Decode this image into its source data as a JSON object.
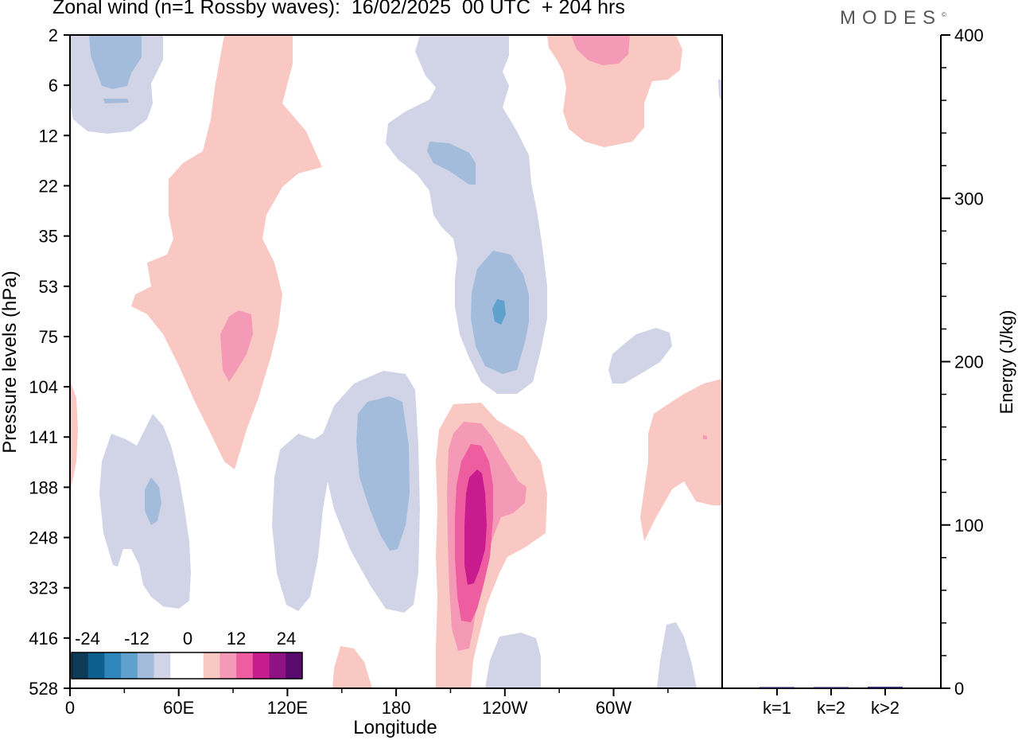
{
  "header": {
    "title": "Zonal wind (n=1 Rossby waves):  16/02/2025  00 UTC  + 204 hrs",
    "logo": "MODES",
    "logo_mark": "©"
  },
  "chart_data": [
    {
      "type": "contour",
      "title": "Zonal wind (n=1 Rossby waves)",
      "xlabel": "Longitude",
      "ylabel": "Pressure levels (hPa)",
      "x_ticks": [
        "0",
        "60E",
        "120E",
        "180",
        "120W",
        "60W"
      ],
      "y_ticks": [
        "2",
        "6",
        "12",
        "22",
        "35",
        "53",
        "75",
        "104",
        "141",
        "188",
        "248",
        "323",
        "416",
        "528"
      ],
      "colorbar": {
        "labels": [
          "-24",
          "-12",
          "0",
          "12",
          "24"
        ],
        "colors": [
          "#0d3b57",
          "#0c5f8f",
          "#2f86bb",
          "#5fa0cc",
          "#a3bcdb",
          "#d1d4e6",
          "#ffffff",
          "#ffffff",
          "#f9c8c3",
          "#f59ab6",
          "#ed5d9f",
          "#c71b8e",
          "#8e1282",
          "#5a0a6c"
        ]
      },
      "colors": {
        "neg_light": "#d1d4e6",
        "neg_medium": "#a3bcdb",
        "neg_strong": "#5fa0cc",
        "pos_light": "#f9c8c3",
        "pos_medium": "#f59ab6",
        "pos_strong": "#ed5d9f",
        "pos_very_strong": "#c71b8e"
      }
    },
    {
      "type": "bar",
      "categories": [
        "k=1",
        "k=2",
        "k>2"
      ],
      "values": [
        0.5,
        0.3,
        0.9
      ],
      "ylabel": "Energy (J/kg)",
      "ylim": [
        0,
        400
      ],
      "y_ticks": [
        "0",
        "100",
        "200",
        "300",
        "400"
      ],
      "bar_color": "#1a1a5e"
    }
  ]
}
